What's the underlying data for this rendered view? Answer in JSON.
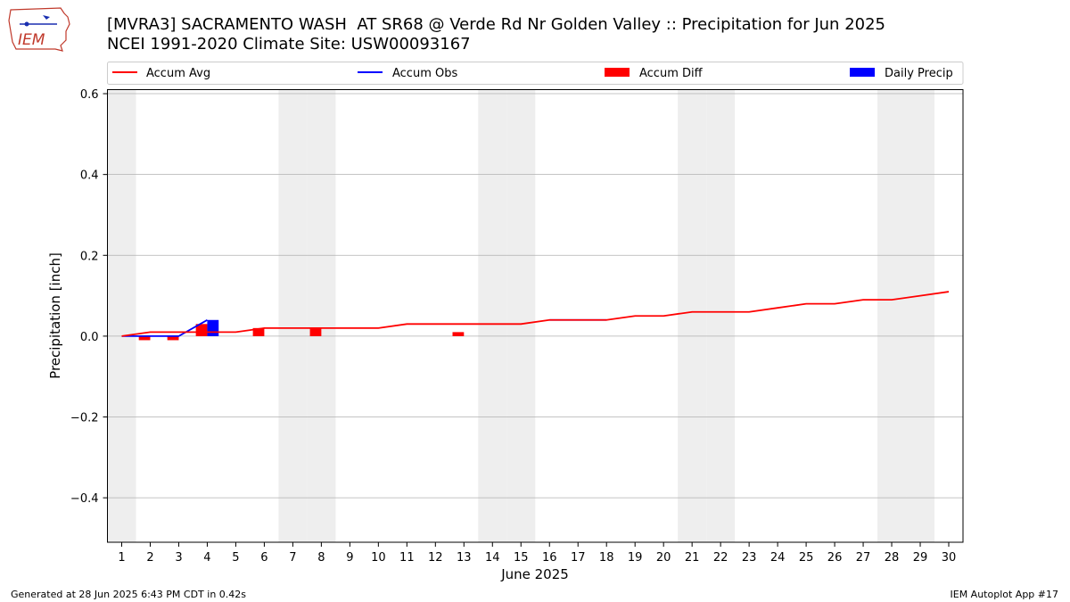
{
  "header": {
    "title_line1": "[MVRA3] SACRAMENTO WASH  AT SR68 @ Verde Rd Nr Golden Valley :: Precipitation for Jun 2025",
    "title_line2": "NCEI 1991-2020 Climate Site: USW00093167",
    "logo_text": "IEM"
  },
  "footer": {
    "generated": "Generated at 28 Jun 2025 6:43 PM CDT in 0.42s",
    "app": "IEM Autoplot App #17"
  },
  "colors": {
    "avg": "#ff0000",
    "obs": "#0000ff",
    "diff": "#ff0000",
    "daily": "#0000ff",
    "weekend_shade": "#eeeeee",
    "grid": "#b0b0b0"
  },
  "chart_data": {
    "type": "line",
    "xlabel": "June 2025",
    "ylabel": "Precipitation [inch]",
    "xlim": [
      0.5,
      30.5
    ],
    "ylim": [
      -0.51,
      0.61
    ],
    "yticks": [
      -0.4,
      -0.2,
      0.0,
      0.2,
      0.4,
      0.6
    ],
    "ytick_labels": [
      "−0.4",
      "−0.2",
      "0.0",
      "0.2",
      "0.4",
      "0.6"
    ],
    "x": [
      1,
      2,
      3,
      4,
      5,
      6,
      7,
      8,
      9,
      10,
      11,
      12,
      13,
      14,
      15,
      16,
      17,
      18,
      19,
      20,
      21,
      22,
      23,
      24,
      25,
      26,
      27,
      28,
      29,
      30
    ],
    "xtick_labels": [
      "1",
      "2",
      "3",
      "4",
      "5",
      "6",
      "7",
      "8",
      "9",
      "10",
      "11",
      "12",
      "13",
      "14",
      "15",
      "16",
      "17",
      "18",
      "19",
      "20",
      "21",
      "22",
      "23",
      "24",
      "25",
      "26",
      "27",
      "28",
      "29",
      "30"
    ],
    "grid": "horizontal",
    "legend_position": "top",
    "legend": [
      "Accum Avg",
      "Accum Obs",
      "Accum Diff",
      "Daily Precip"
    ],
    "weekend_days": [
      1,
      7,
      8,
      14,
      15,
      21,
      22,
      28,
      29
    ],
    "series": [
      {
        "name": "Accum Avg",
        "kind": "line",
        "x": [
          1,
          2,
          3,
          4,
          5,
          6,
          7,
          8,
          9,
          10,
          11,
          12,
          13,
          14,
          15,
          16,
          17,
          18,
          19,
          20,
          21,
          22,
          23,
          24,
          25,
          26,
          27,
          28,
          29,
          30
        ],
        "values": [
          0.0,
          0.01,
          0.01,
          0.01,
          0.01,
          0.02,
          0.02,
          0.02,
          0.02,
          0.02,
          0.03,
          0.03,
          0.03,
          0.03,
          0.03,
          0.04,
          0.04,
          0.04,
          0.05,
          0.05,
          0.06,
          0.06,
          0.06,
          0.07,
          0.08,
          0.08,
          0.09,
          0.09,
          0.1,
          0.11
        ]
      },
      {
        "name": "Accum Obs",
        "kind": "line",
        "segments": [
          {
            "x": [
              1,
              2,
              3,
              4
            ],
            "values": [
              0.0,
              0.0,
              0.0,
              0.04
            ]
          },
          {
            "x": [
              16,
              17,
              18
            ],
            "values": [
              0.04,
              0.04,
              0.04
            ]
          }
        ]
      },
      {
        "name": "Accum Diff",
        "kind": "bar",
        "x": [
          2,
          3,
          4,
          6,
          8,
          13
        ],
        "values": [
          -0.01,
          -0.01,
          0.03,
          0.02,
          0.02,
          0.01
        ]
      },
      {
        "name": "Daily Precip",
        "kind": "bar",
        "x": [
          4
        ],
        "values": [
          0.04
        ]
      }
    ]
  }
}
